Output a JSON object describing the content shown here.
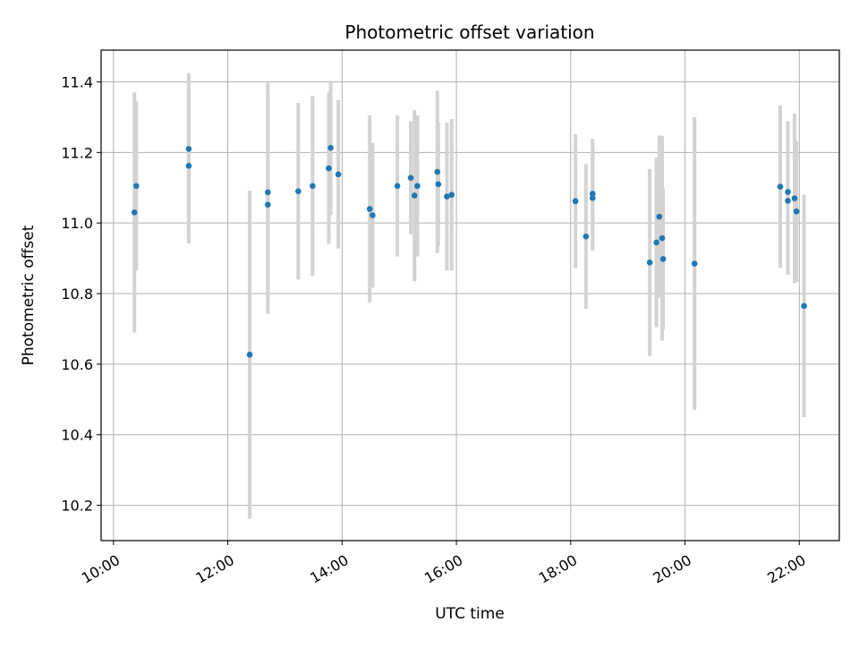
{
  "chart_data": {
    "type": "scatter",
    "title": "Photometric offset variation",
    "xlabel": "UTC time",
    "ylabel": "Photometric offset",
    "x_axis_type": "time",
    "xlim": [
      "09:47",
      "22:42"
    ],
    "ylim": [
      10.1,
      11.49
    ],
    "grid": true,
    "x_ticks": [
      "10:00",
      "12:00",
      "14:00",
      "16:00",
      "18:00",
      "20:00",
      "22:00"
    ],
    "y_ticks": [
      "10.2",
      "10.4",
      "10.6",
      "10.8",
      "11.0",
      "11.2",
      "11.4"
    ],
    "point_color": "#1f77b4",
    "errorbar_color": "#d3d3d3",
    "points": [
      {
        "x": "10:22",
        "y": 11.03,
        "ylo": 10.69,
        "yhi": 11.37
      },
      {
        "x": "10:24",
        "y": 11.105,
        "ylo": 10.865,
        "yhi": 11.345
      },
      {
        "x": "11:19",
        "y": 11.21,
        "ylo": 10.995,
        "yhi": 11.425
      },
      {
        "x": "11:19",
        "y": 11.162,
        "ylo": 10.942,
        "yhi": 11.382
      },
      {
        "x": "12:23",
        "y": 10.627,
        "ylo": 10.162,
        "yhi": 11.092
      },
      {
        "x": "12:42",
        "y": 11.087,
        "ylo": 10.777,
        "yhi": 11.397
      },
      {
        "x": "12:42",
        "y": 11.052,
        "ylo": 10.742,
        "yhi": 11.362
      },
      {
        "x": "13:14",
        "y": 11.09,
        "ylo": 10.84,
        "yhi": 11.34
      },
      {
        "x": "13:29",
        "y": 11.105,
        "ylo": 10.85,
        "yhi": 11.36
      },
      {
        "x": "13:46",
        "y": 11.155,
        "ylo": 10.94,
        "yhi": 11.37
      },
      {
        "x": "13:48",
        "y": 11.213,
        "ylo": 11.023,
        "yhi": 11.403
      },
      {
        "x": "13:56",
        "y": 11.138,
        "ylo": 10.928,
        "yhi": 11.348
      },
      {
        "x": "14:29",
        "y": 11.04,
        "ylo": 10.775,
        "yhi": 11.305
      },
      {
        "x": "14:32",
        "y": 11.022,
        "ylo": 10.817,
        "yhi": 11.227
      },
      {
        "x": "14:58",
        "y": 11.105,
        "ylo": 10.905,
        "yhi": 11.305
      },
      {
        "x": "15:12",
        "y": 11.128,
        "ylo": 10.968,
        "yhi": 11.288
      },
      {
        "x": "15:16",
        "y": 11.078,
        "ylo": 10.835,
        "yhi": 11.32
      },
      {
        "x": "15:19",
        "y": 11.105,
        "ylo": 10.905,
        "yhi": 11.305
      },
      {
        "x": "15:40",
        "y": 11.145,
        "ylo": 10.915,
        "yhi": 11.375
      },
      {
        "x": "15:41",
        "y": 11.11,
        "ylo": 10.935,
        "yhi": 11.285
      },
      {
        "x": "15:50",
        "y": 11.075,
        "ylo": 10.865,
        "yhi": 11.285
      },
      {
        "x": "15:55",
        "y": 11.08,
        "ylo": 10.865,
        "yhi": 11.295
      },
      {
        "x": "18:05",
        "y": 11.062,
        "ylo": 10.872,
        "yhi": 11.252
      },
      {
        "x": "18:16",
        "y": 10.962,
        "ylo": 10.757,
        "yhi": 11.167
      },
      {
        "x": "18:23",
        "y": 11.083,
        "ylo": 10.928,
        "yhi": 11.238
      },
      {
        "x": "18:23",
        "y": 11.071,
        "ylo": 10.921,
        "yhi": 11.221
      },
      {
        "x": "19:23",
        "y": 10.888,
        "ylo": 10.623,
        "yhi": 11.153
      },
      {
        "x": "19:30",
        "y": 10.945,
        "ylo": 10.705,
        "yhi": 11.185
      },
      {
        "x": "19:33",
        "y": 11.018,
        "ylo": 10.788,
        "yhi": 11.248
      },
      {
        "x": "19:36",
        "y": 10.957,
        "ylo": 10.667,
        "yhi": 11.247
      },
      {
        "x": "19:37",
        "y": 10.898,
        "ylo": 10.698,
        "yhi": 11.098
      },
      {
        "x": "20:10",
        "y": 10.885,
        "ylo": 10.47,
        "yhi": 11.3
      },
      {
        "x": "21:40",
        "y": 11.103,
        "ylo": 10.873,
        "yhi": 11.333
      },
      {
        "x": "21:48",
        "y": 11.088,
        "ylo": 10.888,
        "yhi": 11.288
      },
      {
        "x": "21:48",
        "y": 11.063,
        "ylo": 10.853,
        "yhi": 11.273
      },
      {
        "x": "21:55",
        "y": 11.07,
        "ylo": 10.83,
        "yhi": 11.31
      },
      {
        "x": "21:57",
        "y": 11.033,
        "ylo": 10.833,
        "yhi": 11.233
      },
      {
        "x": "22:05",
        "y": 10.765,
        "ylo": 10.45,
        "yhi": 11.08
      }
    ]
  }
}
